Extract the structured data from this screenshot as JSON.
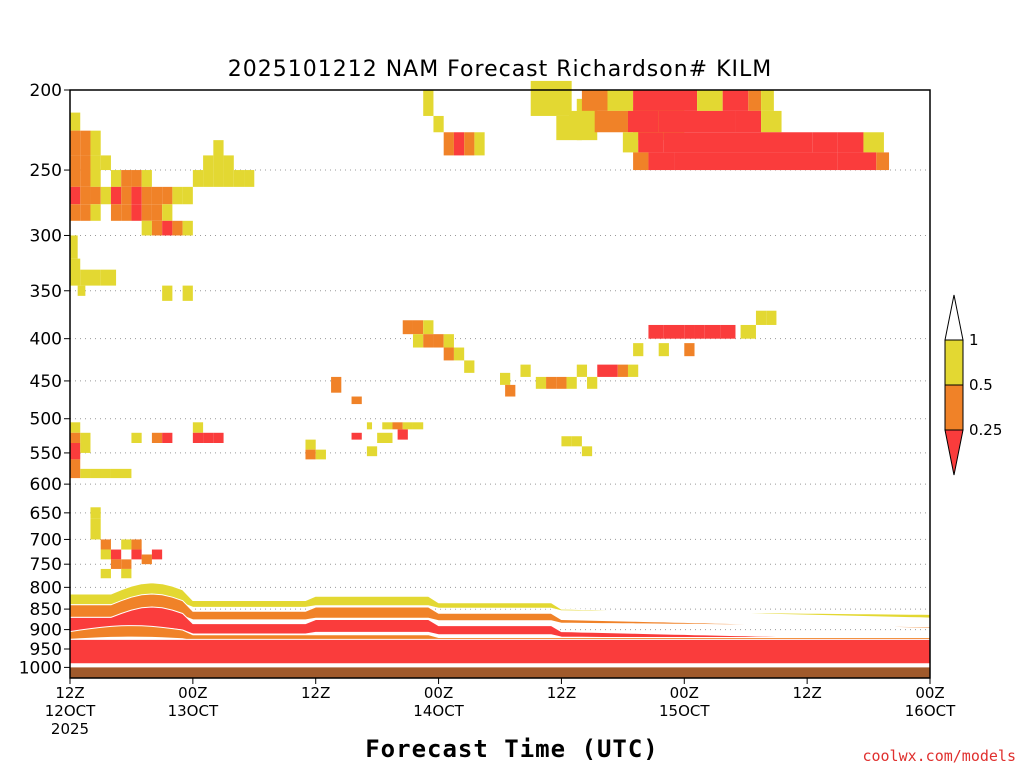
{
  "chart_data": {
    "type": "heatmap",
    "title": "2025101212 NAM Forecast Richardson# KILM",
    "xlabel": "Forecast Time (UTC)",
    "credit": "coolwx.com/models",
    "ylim": [
      1000,
      200
    ],
    "x_range_hours": [
      0,
      84
    ],
    "y_ticks": [
      "200",
      "250",
      "300",
      "350",
      "400",
      "450",
      "500",
      "550",
      "600",
      "650",
      "700",
      "750",
      "800",
      "850",
      "900",
      "950",
      "1000"
    ],
    "x_ticks": [
      {
        "hour": 0,
        "label": "12Z",
        "sub": "12OCT",
        "sub2": "2025"
      },
      {
        "hour": 12,
        "label": "00Z",
        "sub": "13OCT",
        "sub2": ""
      },
      {
        "hour": 24,
        "label": "12Z",
        "sub": "",
        "sub2": ""
      },
      {
        "hour": 36,
        "label": "00Z",
        "sub": "14OCT",
        "sub2": ""
      },
      {
        "hour": 48,
        "label": "12Z",
        "sub": "",
        "sub2": ""
      },
      {
        "hour": 60,
        "label": "00Z",
        "sub": "15OCT",
        "sub2": ""
      },
      {
        "hour": 72,
        "label": "12Z",
        "sub": "",
        "sub2": ""
      },
      {
        "hour": 84,
        "label": "00Z",
        "sub": "16OCT",
        "sub2": ""
      }
    ],
    "legend": {
      "levels": [
        "1",
        "0.5",
        "0.25"
      ],
      "bins": [
        {
          "range": "> 1",
          "color": "#ffffff"
        },
        {
          "range": "0.5 - 1",
          "color": "#e3d832"
        },
        {
          "range": "0.25 - 0.5",
          "color": "#f08228"
        },
        {
          "range": "< 0.25",
          "color": "#fa3c3c"
        }
      ]
    },
    "colors": {
      "1": "#e3d832",
      "2": "#f08228",
      "3": "#fa3c3c",
      "ground": "#a05a2c"
    },
    "cells": [
      [
        0,
        4,
        213,
        224,
        1
      ],
      [
        0,
        4,
        224,
        240,
        2
      ],
      [
        4,
        8,
        224,
        240,
        2
      ],
      [
        8,
        12,
        224,
        240,
        1
      ],
      [
        0,
        4,
        240,
        262,
        2
      ],
      [
        4,
        8,
        240,
        262,
        2
      ],
      [
        8,
        12,
        240,
        262,
        1
      ],
      [
        12,
        16,
        240,
        250,
        1
      ],
      [
        16,
        20,
        250,
        262,
        1
      ],
      [
        20,
        24,
        250,
        262,
        2
      ],
      [
        24,
        28,
        250,
        262,
        2
      ],
      [
        28,
        32,
        250,
        262,
        1
      ],
      [
        0,
        4,
        262,
        275,
        3
      ],
      [
        4,
        8,
        262,
        275,
        2
      ],
      [
        8,
        12,
        262,
        275,
        2
      ],
      [
        12,
        16,
        262,
        275,
        1
      ],
      [
        16,
        20,
        262,
        275,
        3
      ],
      [
        20,
        24,
        262,
        275,
        2
      ],
      [
        24,
        28,
        262,
        275,
        3
      ],
      [
        28,
        32,
        262,
        275,
        2
      ],
      [
        32,
        36,
        262,
        275,
        2
      ],
      [
        36,
        40,
        262,
        275,
        2
      ],
      [
        40,
        44,
        262,
        275,
        1
      ],
      [
        0,
        4,
        275,
        288,
        2
      ],
      [
        4,
        8,
        275,
        288,
        2
      ],
      [
        8,
        12,
        275,
        288,
        1
      ],
      [
        16,
        20,
        275,
        288,
        2
      ],
      [
        20,
        24,
        275,
        288,
        2
      ],
      [
        24,
        28,
        275,
        288,
        3
      ],
      [
        28,
        32,
        275,
        288,
        2
      ],
      [
        32,
        36,
        275,
        288,
        2
      ],
      [
        36,
        40,
        275,
        288,
        1
      ],
      [
        28,
        32,
        288,
        300,
        1
      ],
      [
        32,
        36,
        288,
        300,
        2
      ],
      [
        36,
        40,
        288,
        300,
        3
      ],
      [
        40,
        44,
        288,
        300,
        2
      ],
      [
        44,
        48,
        288,
        300,
        1
      ],
      [
        44,
        48,
        262,
        275,
        1
      ],
      [
        48,
        52,
        250,
        262,
        1
      ],
      [
        52,
        56,
        240,
        262,
        1
      ],
      [
        56,
        60,
        230,
        262,
        1
      ],
      [
        60,
        64,
        240,
        262,
        1
      ],
      [
        64,
        68,
        250,
        262,
        1
      ],
      [
        68,
        72,
        250,
        262,
        1
      ],
      [
        0,
        3,
        300,
        320,
        1
      ],
      [
        0,
        4,
        320,
        345,
        1
      ],
      [
        4,
        12,
        330,
        345,
        1
      ],
      [
        12,
        18,
        330,
        345,
        1
      ],
      [
        36,
        40,
        345,
        360,
        1
      ],
      [
        44,
        48,
        345,
        360,
        1
      ],
      [
        3,
        6,
        345,
        355,
        1
      ],
      [
        0,
        4,
        505,
        520,
        1
      ],
      [
        0,
        4,
        520,
        535,
        2
      ],
      [
        4,
        8,
        520,
        535,
        1
      ],
      [
        0,
        4,
        535,
        560,
        3
      ],
      [
        4,
        8,
        535,
        550,
        1
      ],
      [
        24,
        28,
        520,
        535,
        1
      ],
      [
        32,
        36,
        520,
        535,
        2
      ],
      [
        36,
        40,
        520,
        535,
        3
      ],
      [
        48,
        52,
        505,
        520,
        1
      ],
      [
        48,
        52,
        520,
        535,
        3
      ],
      [
        52,
        56,
        520,
        535,
        3
      ],
      [
        56,
        60,
        520,
        535,
        3
      ],
      [
        0,
        4,
        560,
        590,
        2
      ],
      [
        4,
        8,
        575,
        590,
        1
      ],
      [
        8,
        16,
        575,
        590,
        1
      ],
      [
        16,
        24,
        575,
        590,
        1
      ],
      [
        8,
        12,
        640,
        660,
        1
      ],
      [
        8,
        12,
        660,
        700,
        1
      ],
      [
        12,
        16,
        700,
        720,
        2
      ],
      [
        12,
        16,
        720,
        740,
        1
      ],
      [
        16,
        20,
        720,
        740,
        3
      ],
      [
        20,
        24,
        700,
        720,
        1
      ],
      [
        24,
        28,
        700,
        720,
        2
      ],
      [
        24,
        28,
        720,
        740,
        3
      ],
      [
        16,
        20,
        740,
        760,
        2
      ],
      [
        20,
        24,
        740,
        760,
        2
      ],
      [
        28,
        32,
        730,
        750,
        2
      ],
      [
        12,
        16,
        760,
        780,
        1
      ],
      [
        20,
        24,
        760,
        780,
        1
      ],
      [
        32,
        36,
        720,
        740,
        3
      ],
      [
        92,
        96,
        530,
        545,
        1
      ],
      [
        92,
        96,
        545,
        560,
        2
      ],
      [
        96,
        100,
        545,
        560,
        1
      ],
      [
        102,
        106,
        445,
        465,
        2
      ],
      [
        110,
        114,
        470,
        480,
        2
      ],
      [
        110,
        114,
        520,
        530,
        3
      ],
      [
        128,
        132,
        515,
        530,
        3
      ],
      [
        180,
        196,
        195,
        215,
        1
      ],
      [
        190,
        200,
        215,
        230,
        1
      ],
      [
        198,
        206,
        205,
        230,
        1
      ],
      [
        220,
        240,
        210,
        230,
        1
      ],
      [
        138,
        142,
        200,
        215,
        1
      ],
      [
        142,
        146,
        215,
        225,
        1
      ],
      [
        146,
        150,
        225,
        240,
        2
      ],
      [
        150,
        154,
        225,
        240,
        3
      ],
      [
        154,
        158,
        225,
        240,
        2
      ],
      [
        158,
        162,
        225,
        240,
        1
      ],
      [
        116,
        118,
        505,
        515,
        1
      ],
      [
        122,
        126,
        505,
        515,
        1
      ],
      [
        126,
        130,
        505,
        515,
        2
      ],
      [
        130,
        134,
        505,
        515,
        1
      ],
      [
        134,
        138,
        505,
        515,
        1
      ],
      [
        120,
        126,
        520,
        535,
        1
      ],
      [
        116,
        120,
        540,
        555,
        1
      ],
      [
        192,
        196,
        525,
        540,
        1
      ],
      [
        196,
        200,
        525,
        540,
        1
      ],
      [
        200,
        204,
        540,
        555,
        1
      ],
      [
        130,
        134,
        380,
        395,
        2
      ],
      [
        134,
        138,
        380,
        395,
        2
      ],
      [
        138,
        142,
        380,
        395,
        1
      ],
      [
        134,
        138,
        395,
        410,
        1
      ],
      [
        138,
        142,
        395,
        410,
        2
      ],
      [
        142,
        146,
        395,
        410,
        2
      ],
      [
        146,
        150,
        395,
        410,
        1
      ],
      [
        146,
        150,
        410,
        425,
        2
      ],
      [
        150,
        154,
        410,
        425,
        1
      ],
      [
        154,
        158,
        425,
        440,
        1
      ],
      [
        168,
        172,
        440,
        455,
        1
      ],
      [
        176,
        180,
        430,
        445,
        1
      ],
      [
        170,
        174,
        455,
        470,
        2
      ],
      [
        182,
        186,
        445,
        460,
        1
      ],
      [
        186,
        190,
        445,
        460,
        2
      ],
      [
        190,
        194,
        445,
        460,
        2
      ],
      [
        194,
        198,
        445,
        460,
        1
      ],
      [
        198,
        202,
        430,
        445,
        1
      ],
      [
        202,
        206,
        445,
        460,
        1
      ],
      [
        206,
        210,
        430,
        445,
        3
      ],
      [
        210,
        214,
        430,
        445,
        3
      ],
      [
        214,
        218,
        430,
        445,
        2
      ],
      [
        218,
        222,
        430,
        445,
        1
      ],
      [
        220,
        224,
        405,
        420,
        1
      ],
      [
        230,
        234,
        405,
        420,
        1
      ],
      [
        240,
        244,
        405,
        420,
        2
      ],
      [
        226,
        232,
        385,
        400,
        3
      ],
      [
        232,
        240,
        385,
        400,
        3
      ],
      [
        240,
        244,
        385,
        400,
        3
      ],
      [
        244,
        248,
        385,
        400,
        3
      ],
      [
        248,
        254,
        385,
        400,
        3
      ],
      [
        254,
        260,
        385,
        400,
        3
      ],
      [
        262,
        268,
        385,
        400,
        1
      ],
      [
        268,
        272,
        370,
        385,
        1
      ],
      [
        272,
        276,
        370,
        385,
        1
      ]
    ],
    "bands": [
      {
        "y0": 200,
        "y1": 212,
        "segments": [
          [
            200,
            210,
            2
          ],
          [
            210,
            220,
            1
          ],
          [
            220,
            245,
            3
          ],
          [
            245,
            255,
            1
          ],
          [
            255,
            265,
            3
          ],
          [
            265,
            270,
            2
          ],
          [
            270,
            275,
            1
          ]
        ]
      },
      {
        "y0": 212,
        "y1": 225,
        "segments": [
          [
            195,
            205,
            1
          ],
          [
            205,
            218,
            2
          ],
          [
            218,
            230,
            3
          ],
          [
            230,
            260,
            3
          ],
          [
            260,
            270,
            3
          ],
          [
            270,
            278,
            1
          ]
        ]
      },
      {
        "y0": 225,
        "y1": 238,
        "segments": [
          [
            216,
            222,
            1
          ],
          [
            222,
            232,
            3
          ],
          [
            232,
            290,
            3
          ],
          [
            290,
            300,
            3
          ],
          [
            300,
            310,
            3
          ],
          [
            310,
            318,
            1
          ]
        ]
      },
      {
        "y0": 238,
        "y1": 250,
        "segments": [
          [
            220,
            226,
            2
          ],
          [
            226,
            236,
            3
          ],
          [
            236,
            300,
            3
          ],
          [
            300,
            315,
            3
          ],
          [
            315,
            320,
            2
          ]
        ]
      }
    ],
    "pbl_layers": [
      {
        "y_top": 815,
        "y_bot": 840,
        "shape": "upper",
        "color": 1
      },
      {
        "y_top": 840,
        "y_bot": 870,
        "shape": "upper",
        "color": 2
      },
      {
        "y_top": 870,
        "y_bot": 905,
        "shape": "upper",
        "color": 3
      },
      {
        "y_top": 905,
        "y_bot": 925,
        "shape": "mid",
        "color": 2
      },
      {
        "y_top": 925,
        "y_bot": 990,
        "shape": "low",
        "color": 3
      }
    ]
  }
}
